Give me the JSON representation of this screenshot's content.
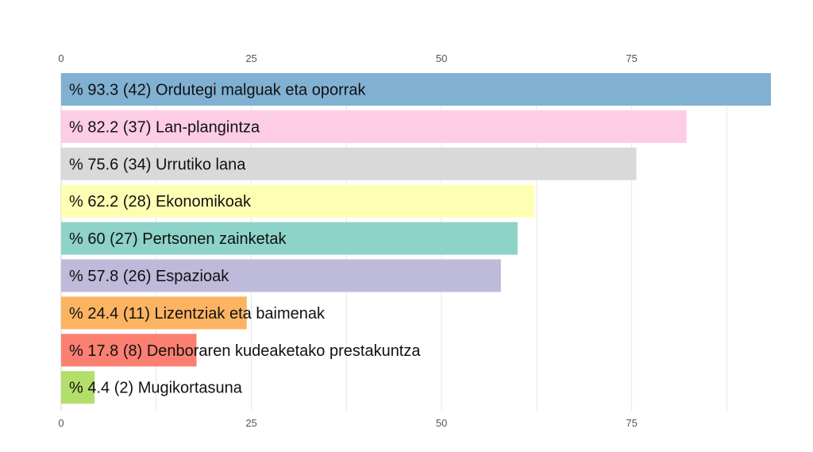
{
  "chart_data": {
    "type": "bar",
    "orientation": "horizontal",
    "title": "",
    "xlabel": "",
    "ylabel": "",
    "xlim": [
      0,
      93.3
    ],
    "grid": true,
    "x_ticks": [
      0,
      25,
      50,
      75
    ],
    "axis_labels_top": true,
    "axis_labels_bottom": true,
    "legend": "none",
    "categories": [
      "Ordutegi malguak eta oporrak",
      "Lan-plangintza",
      "Urrutiko lana",
      "Ekonomikoak",
      "Pertsonen zainketak",
      "Espazioak",
      "Lizentziak eta baimenak",
      "Denboraren kudeaketako prestakuntza",
      "Mugikortasuna"
    ],
    "values": [
      93.3,
      82.2,
      75.6,
      62.2,
      60,
      57.8,
      24.4,
      17.8,
      4.4
    ],
    "counts": [
      42,
      37,
      34,
      28,
      27,
      26,
      11,
      8,
      2
    ],
    "labels": [
      "% 93.3 (42) Ordutegi malguak eta oporrak",
      "% 82.2 (37) Lan-plangintza",
      "% 75.6 (34) Urrutiko lana",
      "% 62.2 (28) Ekonomikoak",
      "% 60 (27) Pertsonen zainketak",
      "% 57.8 (26) Espazioak",
      "% 24.4 (11) Lizentziak eta baimenak",
      "% 17.8 (8) Denboraren kudeaketako prestakuntza",
      "% 4.4 (2) Mugikortasuna"
    ],
    "colors": [
      "#80b1d3",
      "#fccde5",
      "#d9d9d9",
      "#ffffb3",
      "#8dd3c7",
      "#bebada",
      "#fdb462",
      "#fb8072",
      "#b3de69"
    ]
  }
}
